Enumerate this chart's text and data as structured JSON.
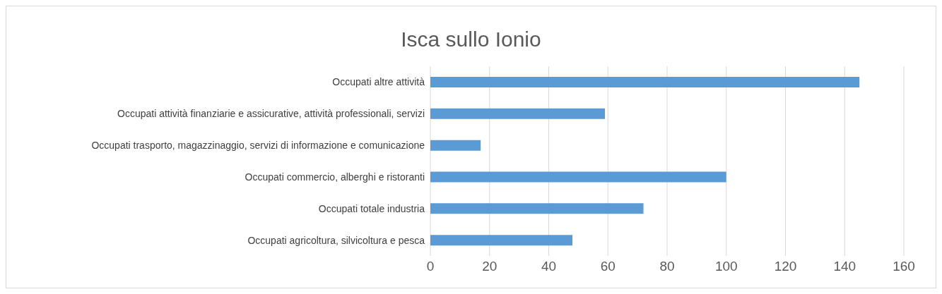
{
  "chart_data": {
    "type": "bar",
    "orientation": "horizontal",
    "title": "Isca sullo Ionio",
    "categories": [
      "Occupati altre attività",
      "Occupati attività finanziarie e assicurative, attività professionali, servizi",
      "Occupati trasporto, magazzinaggio, servizi di informazione e comunicazione",
      "Occupati commercio, alberghi e ristoranti",
      "Occupati totale industria",
      "Occupati agricoltura, silvicoltura e pesca"
    ],
    "values": [
      145,
      59,
      17,
      100,
      72,
      48
    ],
    "color": "#5b9bd5",
    "xlim": [
      0,
      160
    ],
    "xticks": [
      0,
      20,
      40,
      60,
      80,
      100,
      120,
      140,
      160
    ],
    "grid": "x"
  }
}
